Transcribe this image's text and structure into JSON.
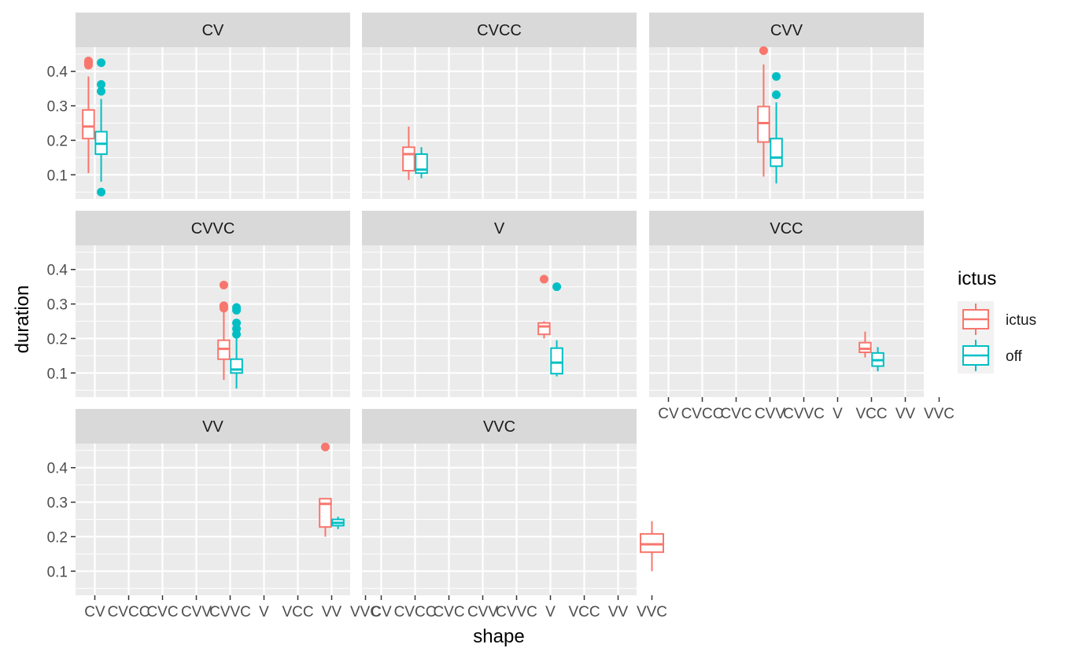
{
  "chart_data": {
    "type": "boxplot",
    "facet_by": "shape",
    "xlabel": "shape",
    "ylabel": "duration",
    "categories": [
      "CV",
      "CVCC",
      "CVC",
      "CVV",
      "CVVC",
      "V",
      "VCC",
      "VV",
      "VVC"
    ],
    "y_ticks": [
      "0.1",
      "0.2",
      "0.3",
      "0.4"
    ],
    "ylim": [
      0.03,
      0.47
    ],
    "grid": true,
    "legend": {
      "title": "ictus",
      "position": "right",
      "entries": [
        {
          "label": "ictus",
          "color": "#F8766D"
        },
        {
          "label": "off",
          "color": "#00BFC4"
        }
      ]
    },
    "facets": [
      {
        "title": "CV",
        "category": "CV",
        "boxes": [
          {
            "group": "ictus",
            "min": 0.105,
            "q1": 0.205,
            "median": 0.24,
            "q3": 0.288,
            "max": 0.385,
            "outliers": [
              0.418,
              0.425,
              0.43
            ]
          },
          {
            "group": "off",
            "min": 0.08,
            "q1": 0.16,
            "median": 0.19,
            "q3": 0.225,
            "max": 0.32,
            "outliers": [
              0.05,
              0.342,
              0.362,
              0.425
            ]
          }
        ]
      },
      {
        "title": "CVCC",
        "category": "CVCC",
        "boxes": [
          {
            "group": "ictus",
            "min": 0.085,
            "q1": 0.112,
            "median": 0.16,
            "q3": 0.18,
            "max": 0.24,
            "outliers": []
          },
          {
            "group": "off",
            "min": 0.09,
            "q1": 0.105,
            "median": 0.115,
            "q3": 0.16,
            "max": 0.18,
            "outliers": []
          }
        ]
      },
      {
        "title": "CVV",
        "category": "CVV",
        "boxes": [
          {
            "group": "ictus",
            "min": 0.095,
            "q1": 0.195,
            "median": 0.25,
            "q3": 0.298,
            "max": 0.42,
            "outliers": [
              0.46
            ]
          },
          {
            "group": "off",
            "min": 0.075,
            "q1": 0.125,
            "median": 0.15,
            "q3": 0.205,
            "max": 0.31,
            "outliers": [
              0.332,
              0.385
            ]
          }
        ]
      },
      {
        "title": "CVVC",
        "category": "CVVC",
        "boxes": [
          {
            "group": "ictus",
            "min": 0.08,
            "q1": 0.14,
            "median": 0.17,
            "q3": 0.195,
            "max": 0.28,
            "outliers": [
              0.288,
              0.295,
              0.355
            ]
          },
          {
            "group": "off",
            "min": 0.055,
            "q1": 0.1,
            "median": 0.11,
            "q3": 0.14,
            "max": 0.2,
            "outliers": [
              0.212,
              0.228,
              0.245,
              0.282,
              0.29
            ]
          }
        ]
      },
      {
        "title": "V",
        "category": "V",
        "boxes": [
          {
            "group": "ictus",
            "min": 0.2,
            "q1": 0.212,
            "median": 0.235,
            "q3": 0.245,
            "max": 0.25,
            "outliers": [
              0.372
            ]
          },
          {
            "group": "off",
            "min": 0.09,
            "q1": 0.098,
            "median": 0.13,
            "q3": 0.172,
            "max": 0.195,
            "outliers": [
              0.35
            ]
          }
        ]
      },
      {
        "title": "VCC",
        "category": "VCC",
        "boxes": [
          {
            "group": "ictus",
            "min": 0.145,
            "q1": 0.16,
            "median": 0.17,
            "q3": 0.188,
            "max": 0.22,
            "outliers": []
          },
          {
            "group": "off",
            "min": 0.105,
            "q1": 0.12,
            "median": 0.137,
            "q3": 0.158,
            "max": 0.175,
            "outliers": []
          }
        ]
      },
      {
        "title": "VV",
        "category": "VV",
        "boxes": [
          {
            "group": "ictus",
            "min": 0.2,
            "q1": 0.228,
            "median": 0.295,
            "q3": 0.31,
            "max": 0.31,
            "outliers": [
              0.46
            ]
          },
          {
            "group": "off",
            "min": 0.222,
            "q1": 0.232,
            "median": 0.24,
            "q3": 0.25,
            "max": 0.258,
            "outliers": []
          }
        ]
      },
      {
        "title": "VVC",
        "category": "VVC",
        "boxes": [
          {
            "group": "ictus",
            "min": 0.1,
            "q1": 0.155,
            "median": 0.178,
            "q3": 0.208,
            "max": 0.245,
            "outliers": []
          }
        ]
      }
    ]
  }
}
